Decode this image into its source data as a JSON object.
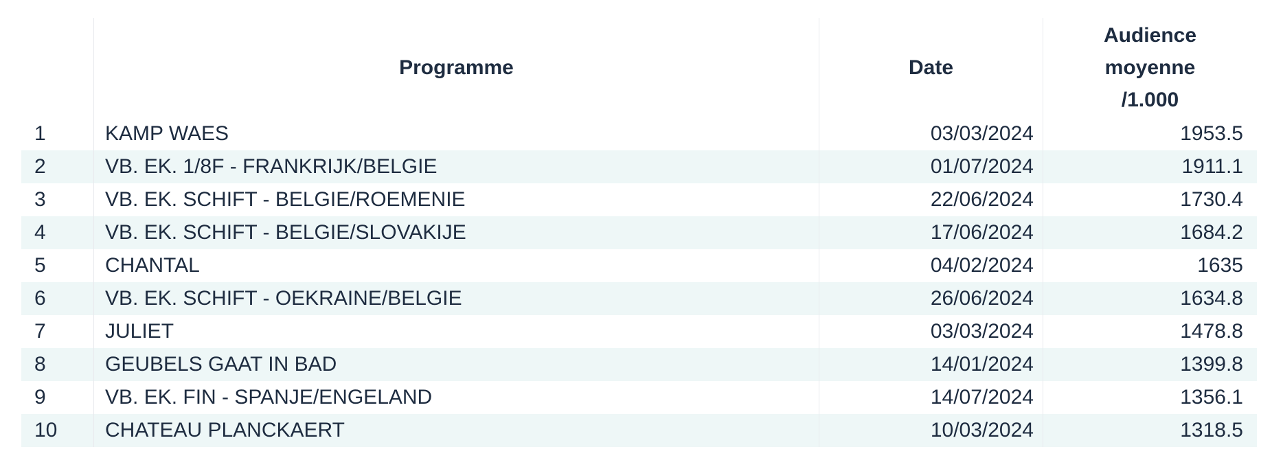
{
  "colors": {
    "text": "#1e2c40",
    "alt_row_bg": "#eef7f7",
    "divider": "#e8eaee",
    "page_bg": "#ffffff"
  },
  "table": {
    "headers": {
      "rank": "",
      "programme": "Programme",
      "date": "Date",
      "audience_line1": "Audience",
      "audience_line2": "moyenne",
      "audience_line3": "/1.000"
    },
    "rows": [
      {
        "rank": "1",
        "programme": "KAMP WAES",
        "date": "03/03/2024",
        "audience": "1953.5"
      },
      {
        "rank": "2",
        "programme": "VB. EK. 1/8F - FRANKRIJK/BELGIE",
        "date": "01/07/2024",
        "audience": "1911.1"
      },
      {
        "rank": "3",
        "programme": "VB. EK. SCHIFT - BELGIE/ROEMENIE",
        "date": "22/06/2024",
        "audience": "1730.4"
      },
      {
        "rank": "4",
        "programme": "VB. EK. SCHIFT - BELGIE/SLOVAKIJE",
        "date": "17/06/2024",
        "audience": "1684.2"
      },
      {
        "rank": "5",
        "programme": "CHANTAL",
        "date": "04/02/2024",
        "audience": "1635"
      },
      {
        "rank": "6",
        "programme": "VB. EK. SCHIFT - OEKRAINE/BELGIE",
        "date": "26/06/2024",
        "audience": "1634.8"
      },
      {
        "rank": "7",
        "programme": "JULIET",
        "date": "03/03/2024",
        "audience": "1478.8"
      },
      {
        "rank": "8",
        "programme": "GEUBELS GAAT IN BAD",
        "date": "14/01/2024",
        "audience": "1399.8"
      },
      {
        "rank": "9",
        "programme": "VB. EK. FIN - SPANJE/ENGELAND",
        "date": "14/07/2024",
        "audience": "1356.1"
      },
      {
        "rank": "10",
        "programme": "CHATEAU PLANCKAERT",
        "date": "10/03/2024",
        "audience": "1318.5"
      }
    ]
  },
  "chart_data": {
    "type": "table",
    "title": "",
    "columns": [
      "",
      "Programme",
      "Date",
      "Audience moyenne /1.000"
    ],
    "rows": [
      [
        1,
        "KAMP WAES",
        "03/03/2024",
        1953.5
      ],
      [
        2,
        "VB. EK. 1/8F - FRANKRIJK/BELGIE",
        "01/07/2024",
        1911.1
      ],
      [
        3,
        "VB. EK. SCHIFT - BELGIE/ROEMENIE",
        "22/06/2024",
        1730.4
      ],
      [
        4,
        "VB. EK. SCHIFT - BELGIE/SLOVAKIJE",
        "17/06/2024",
        1684.2
      ],
      [
        5,
        "CHANTAL",
        "04/02/2024",
        1635
      ],
      [
        6,
        "VB. EK. SCHIFT - OEKRAINE/BELGIE",
        "26/06/2024",
        1634.8
      ],
      [
        7,
        "JULIET",
        "03/03/2024",
        1478.8
      ],
      [
        8,
        "GEUBELS GAAT IN BAD",
        "14/01/2024",
        1399.8
      ],
      [
        9,
        "VB. EK. FIN - SPANJE/ENGELAND",
        "14/07/2024",
        1356.1
      ],
      [
        10,
        "CHATEAU PLANCKAERT",
        "10/03/2024",
        1318.5
      ]
    ],
    "layout": {
      "row_striping": "even rows tinted pale cyan",
      "column_alignment": [
        "left",
        "left",
        "right",
        "right"
      ],
      "grid": "vertical dividers only"
    }
  }
}
